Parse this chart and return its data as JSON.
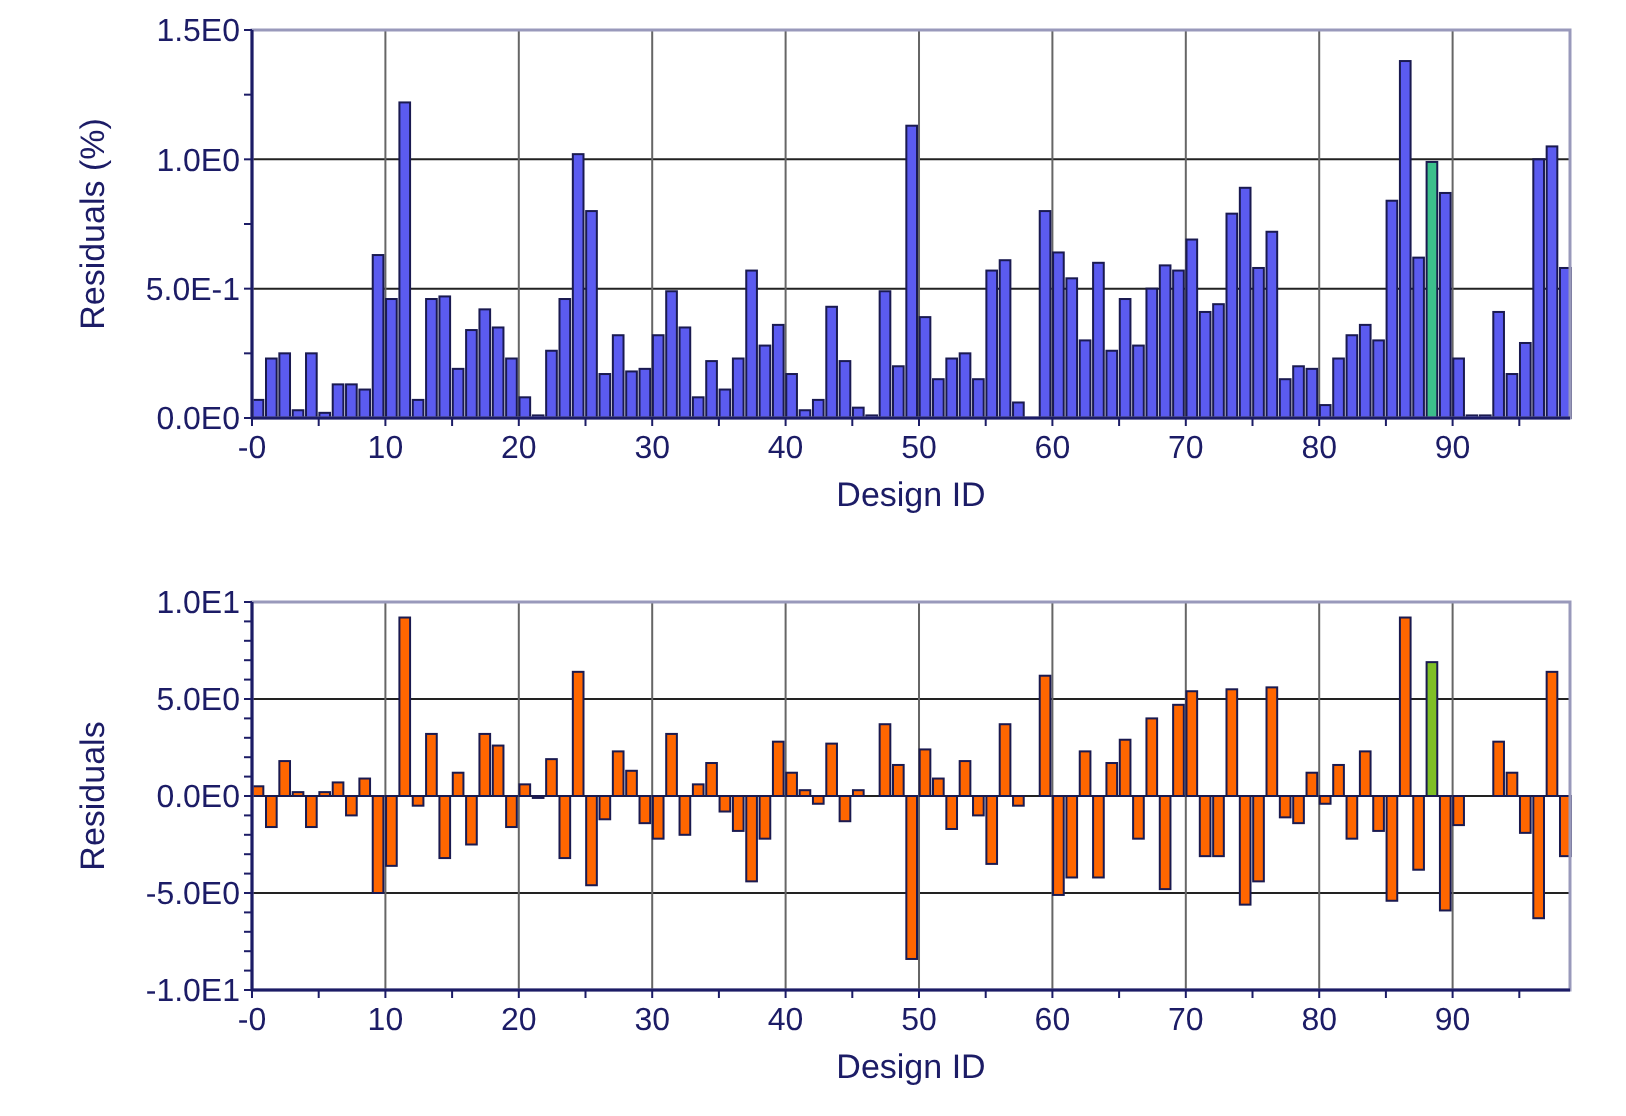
{
  "chart_data": [
    {
      "type": "bar",
      "xlabel": "Design ID",
      "ylabel": "Residuals (%)",
      "grid": true,
      "x": [
        0,
        1,
        2,
        3,
        4,
        5,
        6,
        7,
        8,
        9,
        10,
        11,
        12,
        13,
        14,
        15,
        16,
        17,
        18,
        19,
        20,
        21,
        22,
        23,
        24,
        25,
        26,
        27,
        28,
        29,
        30,
        31,
        32,
        33,
        34,
        35,
        36,
        37,
        38,
        39,
        40,
        41,
        42,
        43,
        44,
        45,
        46,
        47,
        48,
        49,
        50,
        51,
        52,
        53,
        54,
        55,
        56,
        57,
        58,
        59,
        60,
        61,
        62,
        63,
        64,
        65,
        66,
        67,
        68,
        69,
        70,
        71,
        72,
        73,
        74,
        75,
        76,
        77,
        78,
        79,
        80,
        81,
        82,
        83,
        84,
        85,
        86,
        87,
        88,
        89,
        90,
        91,
        92,
        93,
        94,
        95,
        96,
        97,
        98
      ],
      "xlim": [
        0,
        98.8
      ],
      "xticks": [
        {
          "value": 0,
          "label": "-0"
        },
        {
          "value": 5,
          "label": null
        },
        10,
        {
          "value": 15,
          "label": null
        },
        20,
        {
          "value": 25,
          "label": null
        },
        30,
        {
          "value": 35,
          "label": null
        },
        40,
        {
          "value": 45,
          "label": null
        },
        50,
        {
          "value": 55,
          "label": null
        },
        60,
        {
          "value": 65,
          "label": null
        },
        70,
        {
          "value": 75,
          "label": null
        },
        80,
        {
          "value": 85,
          "label": null
        },
        90,
        {
          "value": 95,
          "label": null
        }
      ],
      "ylim": [
        0,
        1.5
      ],
      "yticks": [
        {
          "value": 0,
          "label": "0.0E0"
        },
        {
          "value": 0.25,
          "label": null
        },
        {
          "value": 0.5,
          "label": "5.0E-1"
        },
        {
          "value": 0.75,
          "label": null
        },
        {
          "value": 1,
          "label": "1.0E0"
        },
        {
          "value": 1.25,
          "label": null
        },
        {
          "value": 1.5,
          "label": "1.5E0"
        }
      ],
      "series": [
        {
          "colors": [
            "#5b5bf0",
            "#5b5bf0",
            "#5b5bf0",
            "#5b5bf0",
            "#5b5bf0",
            "#5b5bf0",
            "#5b5bf0",
            "#5b5bf0",
            "#5b5bf0",
            "#5b5bf0",
            "#5b5bf0",
            "#5b5bf0",
            "#5b5bf0",
            "#5b5bf0",
            "#5b5bf0",
            "#5b5bf0",
            "#5b5bf0",
            "#5b5bf0",
            "#5b5bf0",
            "#5b5bf0",
            "#5b5bf0",
            "#5b5bf0",
            "#5b5bf0",
            "#5b5bf0",
            "#5b5bf0",
            "#5b5bf0",
            "#5b5bf0",
            "#5b5bf0",
            "#5b5bf0",
            "#5b5bf0",
            "#5b5bf0",
            "#5b5bf0",
            "#5b5bf0",
            "#5b5bf0",
            "#5b5bf0",
            "#5b5bf0",
            "#5b5bf0",
            "#5b5bf0",
            "#5b5bf0",
            "#5b5bf0",
            "#5b5bf0",
            "#5b5bf0",
            "#5b5bf0",
            "#5b5bf0",
            "#5b5bf0",
            "#5b5bf0",
            "#5b5bf0",
            "#5b5bf0",
            "#5b5bf0",
            "#5b5bf0",
            "#5b5bf0",
            "#5b5bf0",
            "#5b5bf0",
            "#5b5bf0",
            "#5b5bf0",
            "#5b5bf0",
            "#5b5bf0",
            "#5b5bf0",
            "#5b5bf0",
            "#5b5bf0",
            "#5b5bf0",
            "#5b5bf0",
            "#5b5bf0",
            "#5b5bf0",
            "#5b5bf0",
            "#5b5bf0",
            "#5b5bf0",
            "#5b5bf0",
            "#5b5bf0",
            "#5b5bf0",
            "#5b5bf0",
            "#5b5bf0",
            "#5b5bf0",
            "#5b5bf0",
            "#5b5bf0",
            "#5b5bf0",
            "#5b5bf0",
            "#5b5bf0",
            "#5b5bf0",
            "#5b5bf0",
            "#5b5bf0",
            "#5b5bf0",
            "#5b5bf0",
            "#5b5bf0",
            "#5b5bf0",
            "#5b5bf0",
            "#5b5bf0",
            "#5b5bf0",
            "#3cbf8c",
            "#5b5bf0",
            "#5b5bf0",
            "#5b5bf0",
            "#5b5bf0",
            "#5b5bf0",
            "#5b5bf0",
            "#5b5bf0",
            "#5b5bf0",
            "#5b5bf0",
            "#5b5bf0"
          ],
          "values": [
            0.07,
            0.23,
            0.25,
            0.03,
            0.25,
            0.02,
            0.13,
            0.13,
            0.11,
            0.63,
            0.46,
            1.22,
            0.07,
            0.46,
            0.47,
            0.19,
            0.34,
            0.42,
            0.35,
            0.23,
            0.08,
            0.01,
            0.26,
            0.46,
            1.02,
            0.8,
            0.17,
            0.32,
            0.18,
            0.19,
            0.32,
            0.49,
            0.35,
            0.08,
            0.22,
            0.11,
            0.23,
            0.57,
            0.28,
            0.36,
            0.17,
            0.03,
            0.07,
            0.43,
            0.22,
            0.04,
            0.01,
            0.49,
            0.2,
            1.13,
            0.39,
            0.15,
            0.23,
            0.25,
            0.15,
            0.57,
            0.61,
            0.06,
            0,
            0.8,
            0.64,
            0.54,
            0.3,
            0.6,
            0.26,
            0.46,
            0.28,
            0.5,
            0.59,
            0.57,
            0.69,
            0.41,
            0.44,
            0.79,
            0.89,
            0.58,
            0.72,
            0.15,
            0.2,
            0.19,
            0.05,
            0.23,
            0.32,
            0.36,
            0.3,
            0.84,
            1.38,
            0.62,
            0.99,
            0.87,
            0.23,
            0.01,
            0.01,
            0.41,
            0.17,
            0.29,
            1.0,
            1.05,
            0.58
          ]
        }
      ]
    },
    {
      "type": "bar",
      "xlabel": "Design ID",
      "ylabel": "Residuals",
      "grid": true,
      "x": [
        0,
        1,
        2,
        3,
        4,
        5,
        6,
        7,
        8,
        9,
        10,
        11,
        12,
        13,
        14,
        15,
        16,
        17,
        18,
        19,
        20,
        21,
        22,
        23,
        24,
        25,
        26,
        27,
        28,
        29,
        30,
        31,
        32,
        33,
        34,
        35,
        36,
        37,
        38,
        39,
        40,
        41,
        42,
        43,
        44,
        45,
        46,
        47,
        48,
        49,
        50,
        51,
        52,
        53,
        54,
        55,
        56,
        57,
        58,
        59,
        60,
        61,
        62,
        63,
        64,
        65,
        66,
        67,
        68,
        69,
        70,
        71,
        72,
        73,
        74,
        75,
        76,
        77,
        78,
        79,
        80,
        81,
        82,
        83,
        84,
        85,
        86,
        87,
        88,
        89,
        90,
        91,
        92,
        93,
        94,
        95,
        96,
        97,
        98
      ],
      "xlim": [
        0,
        98.8
      ],
      "xticks": [
        {
          "value": 0,
          "label": "-0"
        },
        {
          "value": 5,
          "label": null
        },
        10,
        {
          "value": 15,
          "label": null
        },
        20,
        {
          "value": 25,
          "label": null
        },
        30,
        {
          "value": 35,
          "label": null
        },
        40,
        {
          "value": 45,
          "label": null
        },
        50,
        {
          "value": 55,
          "label": null
        },
        60,
        {
          "value": 65,
          "label": null
        },
        70,
        {
          "value": 75,
          "label": null
        },
        80,
        {
          "value": 85,
          "label": null
        },
        90,
        {
          "value": 95,
          "label": null
        }
      ],
      "ylim": [
        -10,
        10
      ],
      "yticks": [
        {
          "value": -10,
          "label": "-1.0E1"
        },
        {
          "value": -9,
          "label": null
        },
        {
          "value": -8,
          "label": null
        },
        {
          "value": -7,
          "label": null
        },
        {
          "value": -6,
          "label": null
        },
        {
          "value": -5,
          "label": "-5.0E0"
        },
        {
          "value": -4,
          "label": null
        },
        {
          "value": -3,
          "label": null
        },
        {
          "value": -2,
          "label": null
        },
        {
          "value": -1,
          "label": null
        },
        {
          "value": 0,
          "label": "0.0E0"
        },
        {
          "value": 1,
          "label": null
        },
        {
          "value": 2,
          "label": null
        },
        {
          "value": 3,
          "label": null
        },
        {
          "value": 4,
          "label": null
        },
        {
          "value": 5,
          "label": "5.0E0"
        },
        {
          "value": 6,
          "label": null
        },
        {
          "value": 7,
          "label": null
        },
        {
          "value": 8,
          "label": null
        },
        {
          "value": 9,
          "label": null
        },
        {
          "value": 10,
          "label": "1.0E1"
        }
      ],
      "series": [
        {
          "colors": [
            "#ff6600",
            "#ff6600",
            "#ff6600",
            "#ff6600",
            "#ff6600",
            "#ff6600",
            "#ff6600",
            "#ff6600",
            "#ff6600",
            "#ff6600",
            "#ff6600",
            "#ff6600",
            "#ff6600",
            "#ff6600",
            "#ff6600",
            "#ff6600",
            "#ff6600",
            "#ff6600",
            "#ff6600",
            "#ff6600",
            "#ff6600",
            "#ff6600",
            "#ff6600",
            "#ff6600",
            "#ff6600",
            "#ff6600",
            "#ff6600",
            "#ff6600",
            "#ff6600",
            "#ff6600",
            "#ff6600",
            "#ff6600",
            "#ff6600",
            "#ff6600",
            "#ff6600",
            "#ff6600",
            "#ff6600",
            "#ff6600",
            "#ff6600",
            "#ff6600",
            "#ff6600",
            "#ff6600",
            "#ff6600",
            "#ff6600",
            "#ff6600",
            "#ff6600",
            "#ff6600",
            "#ff6600",
            "#ff6600",
            "#ff6600",
            "#ff6600",
            "#ff6600",
            "#ff6600",
            "#ff6600",
            "#ff6600",
            "#ff6600",
            "#ff6600",
            "#ff6600",
            "#ff6600",
            "#ff6600",
            "#ff6600",
            "#ff6600",
            "#ff6600",
            "#ff6600",
            "#ff6600",
            "#ff6600",
            "#ff6600",
            "#ff6600",
            "#ff6600",
            "#ff6600",
            "#ff6600",
            "#ff6600",
            "#ff6600",
            "#ff6600",
            "#ff6600",
            "#ff6600",
            "#ff6600",
            "#ff6600",
            "#ff6600",
            "#ff6600",
            "#ff6600",
            "#ff6600",
            "#ff6600",
            "#ff6600",
            "#ff6600",
            "#ff6600",
            "#ff6600",
            "#ff6600",
            "#7fbf26",
            "#ff6600",
            "#ff6600",
            "#ff6600",
            "#ff6600",
            "#ff6600",
            "#ff6600",
            "#ff6600",
            "#ff6600",
            "#ff6600",
            "#ff6600"
          ],
          "values": [
            0.5,
            -1.6,
            1.8,
            0.2,
            -1.6,
            0.2,
            0.7,
            -1.0,
            0.9,
            -5.0,
            -3.6,
            9.2,
            -0.5,
            3.2,
            -3.2,
            1.2,
            -2.5,
            3.2,
            2.6,
            -1.6,
            0.6,
            -0.1,
            1.9,
            -3.2,
            6.4,
            -4.6,
            -1.2,
            2.3,
            1.3,
            -1.4,
            -2.2,
            3.2,
            -2.0,
            0.6,
            1.7,
            -0.8,
            -1.8,
            -4.4,
            -2.2,
            2.8,
            1.2,
            0.3,
            -0.4,
            2.7,
            -1.3,
            0.3,
            0,
            3.7,
            1.6,
            -8.4,
            2.4,
            0.9,
            -1.7,
            1.8,
            -1.0,
            -3.5,
            3.7,
            -0.5,
            0,
            6.2,
            -5.1,
            -4.2,
            2.3,
            -4.2,
            1.7,
            2.9,
            -2.2,
            4.0,
            -4.8,
            4.7,
            5.4,
            -3.1,
            -3.1,
            5.5,
            -5.6,
            -4.4,
            5.6,
            -1.1,
            -1.4,
            1.2,
            -0.4,
            1.6,
            -2.2,
            2.3,
            -1.8,
            -5.4,
            9.2,
            -3.8,
            6.9,
            -5.9,
            -1.5,
            0,
            0,
            2.8,
            1.2,
            -1.9,
            -6.3,
            6.4,
            -3.1
          ]
        }
      ]
    }
  ]
}
